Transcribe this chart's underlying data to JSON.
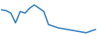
{
  "x": [
    0,
    1,
    2,
    3,
    4,
    5,
    6,
    7,
    8,
    9,
    10,
    11,
    12,
    13,
    14,
    15,
    16,
    17,
    18,
    19,
    20
  ],
  "y": [
    84,
    83.5,
    82,
    76,
    83,
    82,
    85,
    87,
    85,
    83,
    75,
    74,
    73,
    72.5,
    72,
    71.5,
    71,
    70.5,
    70,
    71,
    72
  ],
  "line_color": "#2b7bba",
  "linewidth": 1.2,
  "bg_color": "#ffffff",
  "ylim": [
    68,
    90
  ],
  "xlim": [
    -0.3,
    20.3
  ]
}
